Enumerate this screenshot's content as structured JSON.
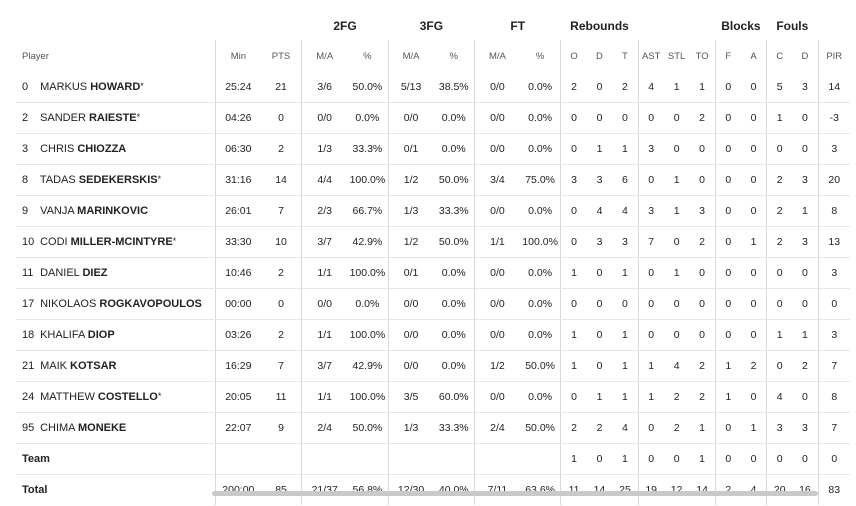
{
  "groups": {
    "two_fg": "2FG",
    "three_fg": "3FG",
    "ft": "FT",
    "rebounds": "Rebounds",
    "blocks": "Blocks",
    "fouls": "Fouls"
  },
  "headers": {
    "player": "Player",
    "min": "Min",
    "pts": "PTS",
    "two_ma": "M/A",
    "two_pct": "%",
    "three_ma": "M/A",
    "three_pct": "%",
    "ft_ma": "M/A",
    "ft_pct": "%",
    "reb_o": "O",
    "reb_d": "D",
    "reb_t": "T",
    "ast": "AST",
    "stl": "STL",
    "to": "TO",
    "blk_f": "F",
    "blk_a": "A",
    "foul_c": "C",
    "foul_d": "D",
    "pir": "PIR"
  },
  "rows": [
    {
      "num": "0",
      "first": "MARKUS",
      "last": "HOWARD",
      "star": "*",
      "min": "25:24",
      "pts": "21",
      "two_ma": "3/6",
      "two_pct": "50.0%",
      "three_ma": "5/13",
      "three_pct": "38.5%",
      "ft_ma": "0/0",
      "ft_pct": "0.0%",
      "reb_o": "2",
      "reb_d": "0",
      "reb_t": "2",
      "ast": "4",
      "stl": "1",
      "to": "1",
      "blk_f": "0",
      "blk_a": "0",
      "foul_c": "5",
      "foul_d": "3",
      "pir": "14"
    },
    {
      "num": "2",
      "first": "SANDER",
      "last": "RAIESTE",
      "star": "*",
      "min": "04:26",
      "pts": "0",
      "two_ma": "0/0",
      "two_pct": "0.0%",
      "three_ma": "0/0",
      "three_pct": "0.0%",
      "ft_ma": "0/0",
      "ft_pct": "0.0%",
      "reb_o": "0",
      "reb_d": "0",
      "reb_t": "0",
      "ast": "0",
      "stl": "0",
      "to": "2",
      "blk_f": "0",
      "blk_a": "0",
      "foul_c": "1",
      "foul_d": "0",
      "pir": "-3"
    },
    {
      "num": "3",
      "first": "CHRIS",
      "last": "CHIOZZA",
      "star": "",
      "min": "06:30",
      "pts": "2",
      "two_ma": "1/3",
      "two_pct": "33.3%",
      "three_ma": "0/1",
      "three_pct": "0.0%",
      "ft_ma": "0/0",
      "ft_pct": "0.0%",
      "reb_o": "0",
      "reb_d": "1",
      "reb_t": "1",
      "ast": "3",
      "stl": "0",
      "to": "0",
      "blk_f": "0",
      "blk_a": "0",
      "foul_c": "0",
      "foul_d": "0",
      "pir": "3"
    },
    {
      "num": "8",
      "first": "TADAS",
      "last": "SEDEKERSKIS",
      "star": "*",
      "min": "31:16",
      "pts": "14",
      "two_ma": "4/4",
      "two_pct": "100.0%",
      "three_ma": "1/2",
      "three_pct": "50.0%",
      "ft_ma": "3/4",
      "ft_pct": "75.0%",
      "reb_o": "3",
      "reb_d": "3",
      "reb_t": "6",
      "ast": "0",
      "stl": "1",
      "to": "0",
      "blk_f": "0",
      "blk_a": "0",
      "foul_c": "2",
      "foul_d": "3",
      "pir": "20"
    },
    {
      "num": "9",
      "first": "VANJA",
      "last": "MARINKOVIC",
      "star": "",
      "min": "26:01",
      "pts": "7",
      "two_ma": "2/3",
      "two_pct": "66.7%",
      "three_ma": "1/3",
      "three_pct": "33.3%",
      "ft_ma": "0/0",
      "ft_pct": "0.0%",
      "reb_o": "0",
      "reb_d": "4",
      "reb_t": "4",
      "ast": "3",
      "stl": "1",
      "to": "3",
      "blk_f": "0",
      "blk_a": "0",
      "foul_c": "2",
      "foul_d": "1",
      "pir": "8"
    },
    {
      "num": "10",
      "first": "CODI",
      "last": "MILLER-MCINTYRE",
      "star": "*",
      "min": "33:30",
      "pts": "10",
      "two_ma": "3/7",
      "two_pct": "42.9%",
      "three_ma": "1/2",
      "three_pct": "50.0%",
      "ft_ma": "1/1",
      "ft_pct": "100.0%",
      "reb_o": "0",
      "reb_d": "3",
      "reb_t": "3",
      "ast": "7",
      "stl": "0",
      "to": "2",
      "blk_f": "0",
      "blk_a": "1",
      "foul_c": "2",
      "foul_d": "3",
      "pir": "13"
    },
    {
      "num": "11",
      "first": "DANIEL",
      "last": "DIEZ",
      "star": "",
      "min": "10:46",
      "pts": "2",
      "two_ma": "1/1",
      "two_pct": "100.0%",
      "three_ma": "0/1",
      "three_pct": "0.0%",
      "ft_ma": "0/0",
      "ft_pct": "0.0%",
      "reb_o": "1",
      "reb_d": "0",
      "reb_t": "1",
      "ast": "0",
      "stl": "1",
      "to": "0",
      "blk_f": "0",
      "blk_a": "0",
      "foul_c": "0",
      "foul_d": "0",
      "pir": "3"
    },
    {
      "num": "17",
      "first": "NIKOLAOS",
      "last": "ROGKAVOPOULOS",
      "star": "",
      "min": "00:00",
      "pts": "0",
      "two_ma": "0/0",
      "two_pct": "0.0%",
      "three_ma": "0/0",
      "three_pct": "0.0%",
      "ft_ma": "0/0",
      "ft_pct": "0.0%",
      "reb_o": "0",
      "reb_d": "0",
      "reb_t": "0",
      "ast": "0",
      "stl": "0",
      "to": "0",
      "blk_f": "0",
      "blk_a": "0",
      "foul_c": "0",
      "foul_d": "0",
      "pir": "0"
    },
    {
      "num": "18",
      "first": "KHALIFA",
      "last": "DIOP",
      "star": "",
      "min": "03:26",
      "pts": "2",
      "two_ma": "1/1",
      "two_pct": "100.0%",
      "three_ma": "0/0",
      "three_pct": "0.0%",
      "ft_ma": "0/0",
      "ft_pct": "0.0%",
      "reb_o": "1",
      "reb_d": "0",
      "reb_t": "1",
      "ast": "0",
      "stl": "0",
      "to": "0",
      "blk_f": "0",
      "blk_a": "0",
      "foul_c": "1",
      "foul_d": "1",
      "pir": "3"
    },
    {
      "num": "21",
      "first": "MAIK",
      "last": "KOTSAR",
      "star": "",
      "min": "16:29",
      "pts": "7",
      "two_ma": "3/7",
      "two_pct": "42.9%",
      "three_ma": "0/0",
      "three_pct": "0.0%",
      "ft_ma": "1/2",
      "ft_pct": "50.0%",
      "reb_o": "1",
      "reb_d": "0",
      "reb_t": "1",
      "ast": "1",
      "stl": "4",
      "to": "2",
      "blk_f": "1",
      "blk_a": "2",
      "foul_c": "0",
      "foul_d": "2",
      "pir": "7"
    },
    {
      "num": "24",
      "first": "MATTHEW",
      "last": "COSTELLO",
      "star": "*",
      "min": "20:05",
      "pts": "11",
      "two_ma": "1/1",
      "two_pct": "100.0%",
      "three_ma": "3/5",
      "three_pct": "60.0%",
      "ft_ma": "0/0",
      "ft_pct": "0.0%",
      "reb_o": "0",
      "reb_d": "1",
      "reb_t": "1",
      "ast": "1",
      "stl": "2",
      "to": "2",
      "blk_f": "1",
      "blk_a": "0",
      "foul_c": "4",
      "foul_d": "0",
      "pir": "8"
    },
    {
      "num": "95",
      "first": "CHIMA",
      "last": "MONEKE",
      "star": "",
      "min": "22:07",
      "pts": "9",
      "two_ma": "2/4",
      "two_pct": "50.0%",
      "three_ma": "1/3",
      "three_pct": "33.3%",
      "ft_ma": "2/4",
      "ft_pct": "50.0%",
      "reb_o": "2",
      "reb_d": "2",
      "reb_t": "4",
      "ast": "0",
      "stl": "2",
      "to": "1",
      "blk_f": "0",
      "blk_a": "1",
      "foul_c": "3",
      "foul_d": "3",
      "pir": "7"
    }
  ],
  "team": {
    "label": "Team",
    "reb_o": "1",
    "reb_d": "0",
    "reb_t": "1",
    "ast": "0",
    "stl": "0",
    "to": "1",
    "blk_f": "0",
    "blk_a": "0",
    "foul_c": "0",
    "foul_d": "0",
    "pir": "0"
  },
  "total": {
    "label": "Total",
    "min": "200:00",
    "pts": "85",
    "two_ma": "21/37",
    "two_pct": "56.8%",
    "three_ma": "12/30",
    "three_pct": "40.0%",
    "ft_ma": "7/11",
    "ft_pct": "63.6%",
    "reb_o": "11",
    "reb_d": "14",
    "reb_t": "25",
    "ast": "19",
    "stl": "12",
    "to": "14",
    "blk_f": "2",
    "blk_a": "4",
    "foul_c": "20",
    "foul_d": "16",
    "pir": "83"
  }
}
